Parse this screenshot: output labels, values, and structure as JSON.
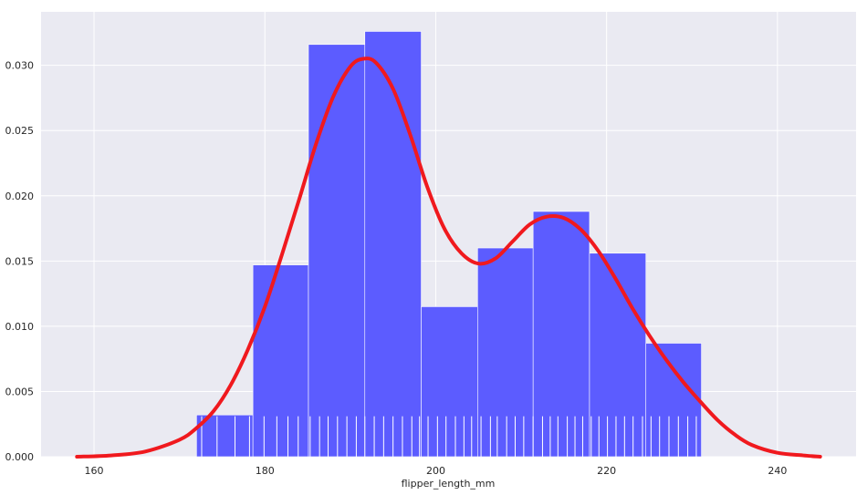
{
  "chart_data": {
    "type": "histogram",
    "xlabel": "flipper_length_mm",
    "ylabel": "",
    "xlim": [
      153.8,
      249.2
    ],
    "ylim": [
      0,
      0.0341
    ],
    "xticks": [
      160,
      180,
      200,
      220,
      240
    ],
    "yticks": [
      0.0,
      0.005,
      0.01,
      0.015,
      0.02,
      0.025,
      0.03
    ],
    "ytick_labels": [
      "0.000",
      "0.005",
      "0.010",
      "0.015",
      "0.020",
      "0.025",
      "0.030"
    ],
    "grid": true,
    "background_color": "#eaeaf2",
    "histogram": {
      "color": "#5c5cff",
      "bins": [
        {
          "x0": 172.0,
          "x1": 178.6,
          "value": 0.0032
        },
        {
          "x0": 178.6,
          "x1": 185.1,
          "value": 0.0147
        },
        {
          "x0": 185.1,
          "x1": 191.7,
          "value": 0.0316
        },
        {
          "x0": 191.7,
          "x1": 198.3,
          "value": 0.0326
        },
        {
          "x0": 198.3,
          "x1": 204.9,
          "value": 0.0115
        },
        {
          "x0": 204.9,
          "x1": 211.4,
          "value": 0.016
        },
        {
          "x0": 211.4,
          "x1": 218.0,
          "value": 0.0188
        },
        {
          "x0": 218.0,
          "x1": 224.6,
          "value": 0.0156
        },
        {
          "x0": 224.6,
          "x1": 231.1,
          "value": 0.0087
        }
      ]
    },
    "kde": {
      "color": "#f0191e",
      "x": [
        158,
        162,
        166,
        170,
        172,
        174,
        176,
        178,
        180,
        182,
        184,
        186,
        188,
        190,
        191.5,
        193,
        195,
        197,
        199,
        201,
        203,
        205,
        207,
        209,
        211,
        213,
        215,
        217,
        219,
        221,
        223,
        225,
        227,
        229,
        231,
        233,
        235,
        237,
        240,
        243,
        245
      ],
      "y": [
        0.0,
        0.0001,
        0.0004,
        0.0013,
        0.0022,
        0.0035,
        0.0055,
        0.0082,
        0.0115,
        0.0155,
        0.0197,
        0.024,
        0.0276,
        0.0299,
        0.0305,
        0.0302,
        0.0282,
        0.0247,
        0.0207,
        0.0175,
        0.0156,
        0.0148,
        0.0152,
        0.0165,
        0.0178,
        0.0184,
        0.0183,
        0.0174,
        0.0158,
        0.0137,
        0.0114,
        0.0093,
        0.0074,
        0.0057,
        0.0042,
        0.0028,
        0.0017,
        0.0009,
        0.0003,
        0.0001,
        0.0
      ]
    },
    "rug": {
      "color": "#ffffff",
      "height_value": 0.0031,
      "x": [
        172.6,
        174.4,
        176.5,
        178.2,
        179.9,
        181.4,
        182.7,
        183.9,
        185.3,
        186.4,
        187.4,
        188.5,
        189.6,
        190.7,
        191.7,
        192.8,
        193.9,
        195.0,
        196.1,
        197.2,
        198.1,
        199.1,
        200.2,
        201.2,
        202.3,
        203.3,
        204.2,
        205.3,
        206.4,
        207.2,
        208.3,
        209.3,
        210.3,
        211.4,
        212.5,
        213.4,
        214.3,
        215.4,
        216.3,
        217.2,
        218.2,
        219.1,
        220.1,
        221.1,
        222.1,
        223.1,
        224.2,
        225.2,
        226.2,
        227.3,
        228.4,
        229.5,
        230.5
      ]
    }
  }
}
